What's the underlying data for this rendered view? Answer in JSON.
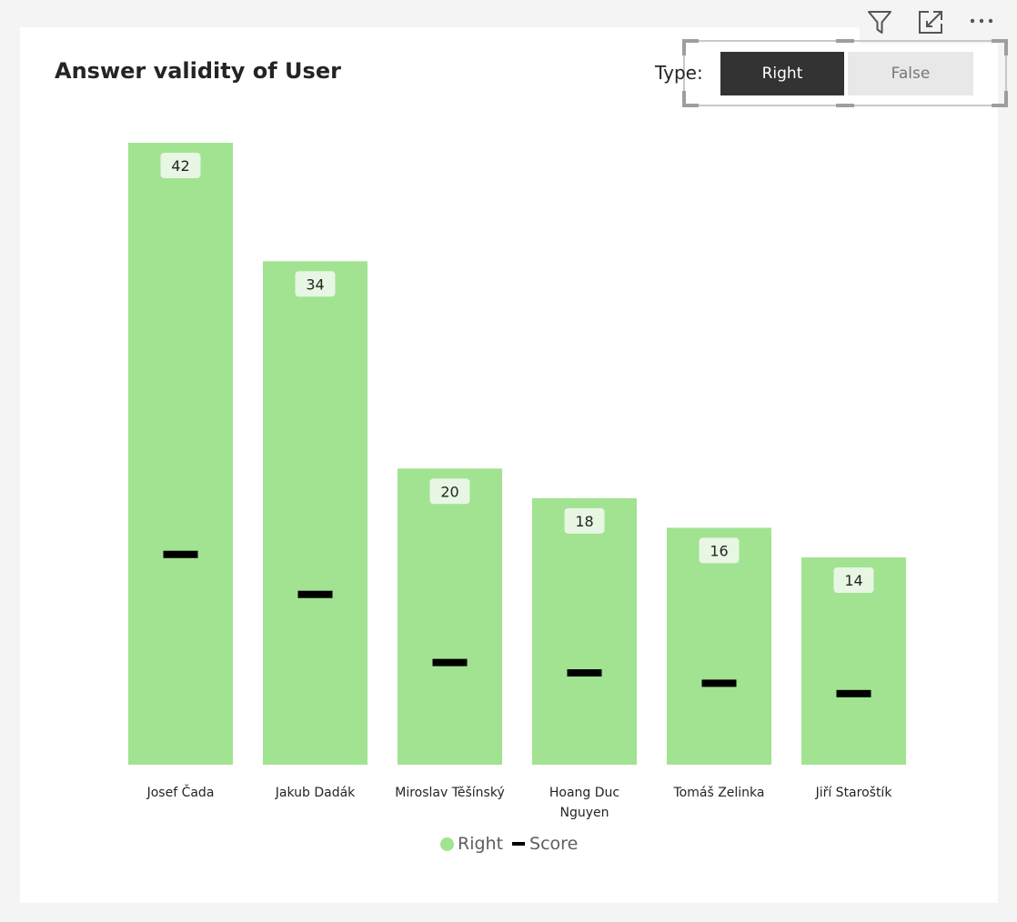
{
  "colors": {
    "bar": "#a1e391",
    "score": "#000000",
    "label_bg": "#e8f6e4",
    "slicer_active_bg": "#333333",
    "slicer_inactive_bg": "#e8e8e8"
  },
  "header_icons": [
    "filter-icon",
    "focus-mode-icon",
    "more-options-icon"
  ],
  "slicer": {
    "label": "Type:",
    "options": [
      {
        "label": "Right",
        "selected": true
      },
      {
        "label": "False",
        "selected": false
      }
    ]
  },
  "chart_data": {
    "type": "bar",
    "title": "Answer validity of User",
    "xlabel": "",
    "ylabel": "",
    "categories": [
      [
        "Josef Čada"
      ],
      [
        "Jakub Dadák"
      ],
      [
        "Miroslav Těšínský"
      ],
      [
        "Hoang Duc",
        "Nguyen"
      ],
      [
        "Tomáš Zelinka"
      ],
      [
        "Jiří Staroštík"
      ]
    ],
    "series": [
      {
        "name": "Right",
        "kind": "bar",
        "values": [
          42,
          34,
          20,
          18,
          16,
          14
        ],
        "data_labels": true
      },
      {
        "name": "Score",
        "kind": "marker",
        "values": [
          14.2,
          11.5,
          6.9,
          6.2,
          5.5,
          4.8
        ],
        "data_labels": false
      }
    ],
    "ylim": [
      0,
      42
    ],
    "grid": false,
    "legend": "bottom-center"
  }
}
